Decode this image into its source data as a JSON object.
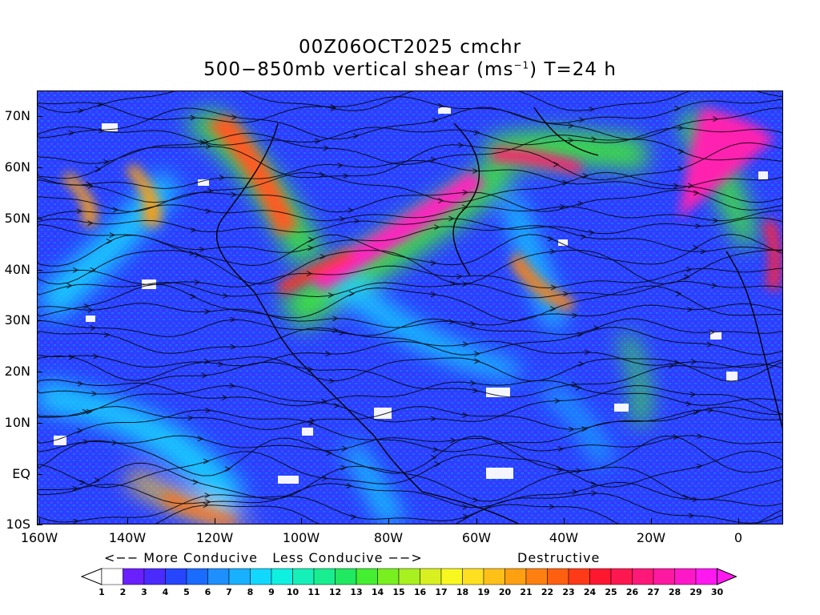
{
  "title": {
    "line1": "00Z06OCT2025 cmchr",
    "line2_pre": "500−850mb vertical shear (ms",
    "line2_sup": "−1",
    "line2_post": ") T=24 h"
  },
  "axes": {
    "lat_labels": [
      "70N",
      "60N",
      "50N",
      "40N",
      "30N",
      "20N",
      "10N",
      "EQ",
      "10S"
    ],
    "lon_labels": [
      "160W",
      "140W",
      "120W",
      "100W",
      "80W",
      "60W",
      "40W",
      "20W",
      "0"
    ]
  },
  "legend": {
    "left_text": "<−− More Conducive   Less Conducive −−>",
    "right_text": "Destructive",
    "levels": [
      "1",
      "2",
      "3",
      "4",
      "5",
      "6",
      "7",
      "8",
      "9",
      "10",
      "11",
      "12",
      "13",
      "14",
      "15",
      "16",
      "17",
      "18",
      "19",
      "20",
      "21",
      "22",
      "23",
      "24",
      "25",
      "26",
      "27",
      "28",
      "29",
      "30"
    ],
    "colors": [
      "#ffffff",
      "#6a1fff",
      "#4a2bff",
      "#2545ff",
      "#1a6bff",
      "#1e8fff",
      "#18b0ff",
      "#12d8ff",
      "#10f0e0",
      "#14f0b8",
      "#18ee90",
      "#20e860",
      "#44ee30",
      "#78f020",
      "#a8f020",
      "#d8f020",
      "#f8f820",
      "#ffe020",
      "#ffc018",
      "#ffa010",
      "#ff8010",
      "#ff6010",
      "#ff3a18",
      "#ff1830",
      "#ff1850",
      "#ff1878",
      "#ff18a0",
      "#ff18c8",
      "#ff18f0"
    ]
  },
  "map": {
    "description_colors": {
      "background": "#2a44ff",
      "land_outline": "#000000"
    }
  }
}
